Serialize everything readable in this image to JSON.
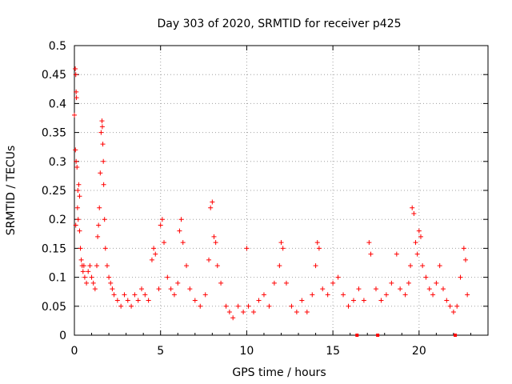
{
  "chart_data": {
    "type": "scatter",
    "title": "Day 303 of 2020, SRMTID for receiver p425",
    "xlabel": "GPS time / hours",
    "ylabel": "SRMTID / TECUs",
    "xlim": [
      0,
      24
    ],
    "ylim": [
      0,
      0.5
    ],
    "x_ticks": [
      0,
      5,
      10,
      15,
      20
    ],
    "x_tick_labels": [
      "0",
      "5",
      "10",
      "15",
      "20"
    ],
    "y_ticks": [
      0,
      0.05,
      0.1,
      0.15,
      0.2,
      0.25,
      0.3,
      0.35,
      0.4,
      0.45,
      0.5
    ],
    "y_tick_labels": [
      "0",
      "0.05",
      "0.1",
      "0.15",
      "0.2",
      "0.25",
      "0.3",
      "0.35",
      "0.4",
      "0.45",
      "0.5"
    ],
    "grid": true,
    "marker": "+",
    "color": "#ff0000",
    "baseline_markers_x": [
      16.4,
      17.6,
      22.1
    ],
    "series": [
      {
        "name": "SRMTID",
        "points": [
          [
            0.0,
            0.38
          ],
          [
            0.05,
            0.46
          ],
          [
            0.08,
            0.45
          ],
          [
            0.1,
            0.42
          ],
          [
            0.12,
            0.41
          ],
          [
            0.06,
            0.32
          ],
          [
            0.1,
            0.3
          ],
          [
            0.15,
            0.29
          ],
          [
            0.2,
            0.25
          ],
          [
            0.25,
            0.26
          ],
          [
            0.3,
            0.24
          ],
          [
            0.18,
            0.22
          ],
          [
            0.22,
            0.2
          ],
          [
            0.08,
            0.19
          ],
          [
            0.3,
            0.18
          ],
          [
            0.35,
            0.15
          ],
          [
            0.4,
            0.13
          ],
          [
            0.45,
            0.12
          ],
          [
            0.5,
            0.11
          ],
          [
            0.55,
            0.12
          ],
          [
            0.6,
            0.1
          ],
          [
            0.7,
            0.09
          ],
          [
            0.8,
            0.11
          ],
          [
            0.9,
            0.12
          ],
          [
            1.0,
            0.1
          ],
          [
            1.1,
            0.09
          ],
          [
            1.2,
            0.08
          ],
          [
            1.3,
            0.12
          ],
          [
            1.35,
            0.17
          ],
          [
            1.4,
            0.19
          ],
          [
            1.45,
            0.22
          ],
          [
            1.5,
            0.28
          ],
          [
            1.55,
            0.35
          ],
          [
            1.6,
            0.37
          ],
          [
            1.62,
            0.36
          ],
          [
            1.65,
            0.33
          ],
          [
            1.68,
            0.3
          ],
          [
            1.7,
            0.26
          ],
          [
            1.75,
            0.2
          ],
          [
            1.8,
            0.15
          ],
          [
            1.9,
            0.12
          ],
          [
            2.0,
            0.1
          ],
          [
            2.1,
            0.09
          ],
          [
            2.2,
            0.08
          ],
          [
            2.3,
            0.07
          ],
          [
            2.5,
            0.06
          ],
          [
            2.7,
            0.05
          ],
          [
            2.9,
            0.07
          ],
          [
            3.1,
            0.06
          ],
          [
            3.3,
            0.05
          ],
          [
            3.5,
            0.07
          ],
          [
            3.7,
            0.06
          ],
          [
            3.9,
            0.08
          ],
          [
            4.1,
            0.07
          ],
          [
            4.3,
            0.06
          ],
          [
            4.5,
            0.13
          ],
          [
            4.6,
            0.15
          ],
          [
            4.7,
            0.14
          ],
          [
            4.9,
            0.08
          ],
          [
            5.0,
            0.19
          ],
          [
            5.1,
            0.2
          ],
          [
            5.2,
            0.16
          ],
          [
            5.4,
            0.1
          ],
          [
            5.6,
            0.08
          ],
          [
            5.8,
            0.07
          ],
          [
            6.0,
            0.09
          ],
          [
            6.1,
            0.18
          ],
          [
            6.2,
            0.2
          ],
          [
            6.3,
            0.16
          ],
          [
            6.5,
            0.12
          ],
          [
            6.7,
            0.08
          ],
          [
            7.0,
            0.06
          ],
          [
            7.3,
            0.05
          ],
          [
            7.6,
            0.07
          ],
          [
            7.8,
            0.13
          ],
          [
            7.9,
            0.22
          ],
          [
            8.0,
            0.23
          ],
          [
            8.1,
            0.17
          ],
          [
            8.2,
            0.16
          ],
          [
            8.3,
            0.12
          ],
          [
            8.5,
            0.09
          ],
          [
            8.8,
            0.05
          ],
          [
            9.0,
            0.04
          ],
          [
            9.2,
            0.03
          ],
          [
            9.5,
            0.05
          ],
          [
            9.8,
            0.04
          ],
          [
            10.0,
            0.15
          ],
          [
            10.1,
            0.05
          ],
          [
            10.4,
            0.04
          ],
          [
            10.7,
            0.06
          ],
          [
            11.0,
            0.07
          ],
          [
            11.3,
            0.05
          ],
          [
            11.6,
            0.09
          ],
          [
            11.9,
            0.12
          ],
          [
            12.0,
            0.16
          ],
          [
            12.1,
            0.15
          ],
          [
            12.3,
            0.09
          ],
          [
            12.6,
            0.05
          ],
          [
            12.9,
            0.04
          ],
          [
            13.2,
            0.06
          ],
          [
            13.5,
            0.04
          ],
          [
            13.8,
            0.07
          ],
          [
            14.0,
            0.12
          ],
          [
            14.1,
            0.16
          ],
          [
            14.2,
            0.15
          ],
          [
            14.4,
            0.08
          ],
          [
            14.7,
            0.07
          ],
          [
            15.0,
            0.09
          ],
          [
            15.3,
            0.1
          ],
          [
            15.6,
            0.07
          ],
          [
            15.9,
            0.05
          ],
          [
            16.2,
            0.06
          ],
          [
            16.5,
            0.08
          ],
          [
            16.8,
            0.06
          ],
          [
            17.1,
            0.16
          ],
          [
            17.2,
            0.14
          ],
          [
            17.5,
            0.08
          ],
          [
            17.8,
            0.06
          ],
          [
            18.1,
            0.07
          ],
          [
            18.4,
            0.09
          ],
          [
            18.7,
            0.14
          ],
          [
            18.9,
            0.08
          ],
          [
            19.2,
            0.07
          ],
          [
            19.4,
            0.09
          ],
          [
            19.5,
            0.12
          ],
          [
            19.6,
            0.22
          ],
          [
            19.7,
            0.21
          ],
          [
            19.8,
            0.16
          ],
          [
            19.9,
            0.14
          ],
          [
            20.0,
            0.18
          ],
          [
            20.1,
            0.17
          ],
          [
            20.2,
            0.12
          ],
          [
            20.4,
            0.1
          ],
          [
            20.6,
            0.08
          ],
          [
            20.8,
            0.07
          ],
          [
            21.0,
            0.09
          ],
          [
            21.2,
            0.12
          ],
          [
            21.4,
            0.08
          ],
          [
            21.6,
            0.06
          ],
          [
            21.8,
            0.05
          ],
          [
            22.0,
            0.04
          ],
          [
            22.2,
            0.05
          ],
          [
            22.4,
            0.1
          ],
          [
            22.6,
            0.15
          ],
          [
            22.7,
            0.13
          ],
          [
            22.8,
            0.07
          ]
        ]
      }
    ]
  }
}
